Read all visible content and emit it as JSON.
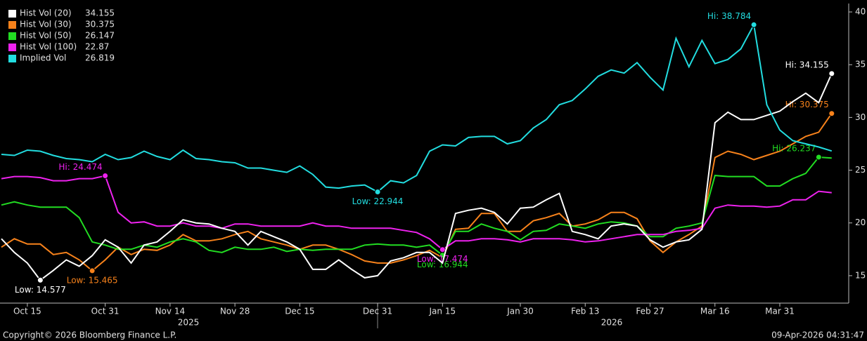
{
  "chart_data": {
    "type": "line",
    "categories": [
      null,
      null,
      "Oct 15",
      null,
      null,
      null,
      null,
      null,
      "Oct 31",
      null,
      null,
      null,
      null,
      "Nov 14",
      null,
      null,
      null,
      null,
      "Nov 28",
      null,
      null,
      null,
      null,
      "Dec 15",
      null,
      null,
      null,
      null,
      null,
      "Dec 31",
      null,
      null,
      null,
      null,
      "Jan 15",
      null,
      null,
      null,
      null,
      null,
      "Jan 30",
      null,
      null,
      null,
      null,
      "Feb 13",
      null,
      null,
      null,
      null,
      "Feb 27",
      null,
      null,
      null,
      null,
      "Mar 16",
      null,
      null,
      null,
      null,
      "Mar 31",
      null,
      null,
      null,
      null
    ],
    "year_labels": [
      "2025",
      "2026"
    ],
    "series": [
      {
        "name": "Hist Vol (20)",
        "color": "#ffffff",
        "hi_label": "Hi: 34.155",
        "low_label": "Low: 14.577",
        "values": [
          18.5,
          17.2,
          16.2,
          14.577,
          15.5,
          16.5,
          15.9,
          16.9,
          18.4,
          17.7,
          16.2,
          17.9,
          18.2,
          19.2,
          20.3,
          20.0,
          19.9,
          19.5,
          19.2,
          17.9,
          19.2,
          18.7,
          18.2,
          17.5,
          15.6,
          15.6,
          16.5,
          15.6,
          14.8,
          15.0,
          16.4,
          16.7,
          17.2,
          17.2,
          16.2,
          20.9,
          21.2,
          21.4,
          21.0,
          19.9,
          21.4,
          21.5,
          22.2,
          22.8,
          19.2,
          18.9,
          18.5,
          19.7,
          19.9,
          19.7,
          18.4,
          17.7,
          18.2,
          18.4,
          19.4,
          29.5,
          30.5,
          29.8,
          29.8,
          30.2,
          30.6,
          31.5,
          32.3,
          31.4,
          34.155
        ]
      },
      {
        "name": "Hist Vol (30)",
        "color": "#f7821b",
        "hi_label": "Hi: 30.375",
        "low_label": "Low: 15.465",
        "values": [
          17.7,
          18.5,
          18.0,
          18.0,
          17.0,
          17.2,
          16.5,
          15.465,
          16.5,
          17.7,
          17.0,
          17.5,
          17.4,
          17.9,
          18.9,
          18.3,
          18.3,
          18.5,
          18.9,
          19.2,
          18.5,
          18.2,
          17.9,
          17.5,
          17.9,
          17.9,
          17.5,
          17.0,
          16.4,
          16.2,
          16.2,
          16.5,
          16.9,
          17.4,
          16.7,
          19.4,
          19.5,
          20.9,
          20.9,
          19.2,
          19.2,
          20.2,
          20.5,
          20.9,
          19.7,
          19.9,
          20.3,
          21.0,
          21.0,
          20.4,
          18.3,
          17.2,
          18.2,
          18.9,
          19.7,
          26.2,
          26.8,
          26.5,
          26.0,
          26.4,
          26.8,
          27.5,
          28.2,
          28.6,
          30.375
        ]
      },
      {
        "name": "Hist Vol (50)",
        "color": "#22dd22",
        "hi_label": "Hi: 26.237",
        "low_label": "Low: 16.944",
        "values": [
          21.7,
          22.0,
          21.7,
          21.5,
          21.5,
          21.5,
          20.5,
          18.2,
          17.9,
          17.5,
          17.5,
          17.9,
          17.7,
          18.2,
          18.5,
          18.2,
          17.4,
          17.2,
          17.7,
          17.5,
          17.5,
          17.7,
          17.3,
          17.5,
          17.4,
          17.5,
          17.5,
          17.5,
          17.9,
          18.0,
          17.9,
          17.9,
          17.7,
          17.9,
          16.944,
          19.2,
          19.2,
          19.9,
          19.5,
          19.2,
          18.4,
          19.2,
          19.3,
          19.9,
          19.7,
          19.5,
          19.9,
          20.1,
          20.0,
          19.7,
          18.7,
          18.7,
          19.5,
          19.7,
          20.0,
          24.5,
          24.4,
          24.4,
          24.4,
          23.5,
          23.5,
          24.2,
          24.7,
          26.237,
          26.147
        ]
      },
      {
        "name": "Hist Vol (100)",
        "color": "#ee22ee",
        "hi_label": "Hi: 24.474",
        "low_label": "Low: 17.474",
        "values": [
          24.2,
          24.4,
          24.4,
          24.3,
          24.0,
          24.0,
          24.2,
          24.2,
          24.474,
          21.0,
          20.0,
          20.1,
          19.7,
          19.7,
          20.0,
          19.7,
          19.7,
          19.5,
          19.9,
          19.9,
          19.7,
          19.7,
          19.7,
          19.7,
          20.0,
          19.7,
          19.7,
          19.5,
          19.5,
          19.5,
          19.5,
          19.3,
          19.1,
          18.5,
          17.474,
          18.3,
          18.3,
          18.5,
          18.5,
          18.4,
          18.2,
          18.5,
          18.5,
          18.5,
          18.4,
          18.2,
          18.3,
          18.5,
          18.7,
          18.9,
          18.9,
          18.9,
          19.2,
          19.3,
          19.5,
          21.4,
          21.7,
          21.6,
          21.6,
          21.5,
          21.6,
          22.2,
          22.2,
          23.0,
          22.87
        ]
      },
      {
        "name": "Implied Vol",
        "color": "#22dde0",
        "hi_label": "Hi: 38.784",
        "low_label": "Low: 22.944",
        "values": [
          26.5,
          26.4,
          26.9,
          26.8,
          26.4,
          26.1,
          26.0,
          25.8,
          26.5,
          26.0,
          26.2,
          26.8,
          26.3,
          26.0,
          26.9,
          26.1,
          26.0,
          25.8,
          25.7,
          25.2,
          25.2,
          25.0,
          24.8,
          25.4,
          24.6,
          23.4,
          23.3,
          23.5,
          23.6,
          22.944,
          24.0,
          23.8,
          24.5,
          26.8,
          27.4,
          27.3,
          28.1,
          28.2,
          28.2,
          27.5,
          27.8,
          29.0,
          29.8,
          31.2,
          31.6,
          32.7,
          33.9,
          34.5,
          34.2,
          35.2,
          33.8,
          32.6,
          37.5,
          34.8,
          37.3,
          35.1,
          35.5,
          36.5,
          38.784,
          31.2,
          28.8,
          27.8,
          27.5,
          27.2,
          26.819
        ]
      }
    ],
    "ylim": [
      12.4,
      40.8
    ],
    "yticks": [
      15,
      20,
      25,
      30,
      35,
      40
    ],
    "legend": "upper left",
    "footer_left": "Copyright© 2026 Bloomberg Finance L.P.",
    "footer_right": "09-Apr-2026 04:31:47"
  }
}
